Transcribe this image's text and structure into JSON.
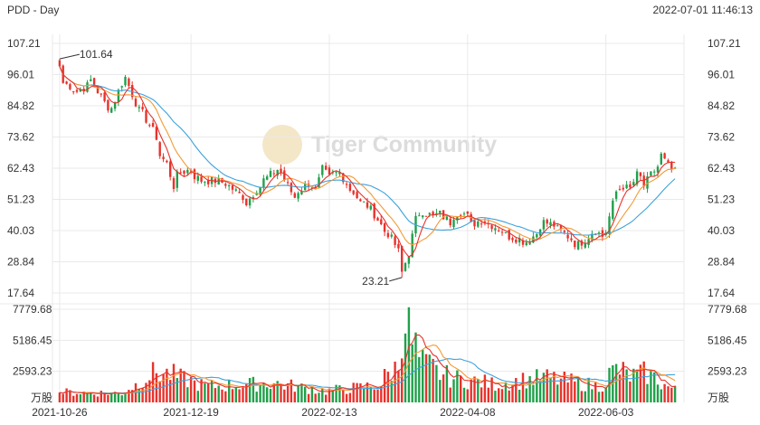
{
  "header": {
    "symbol_period": "PDD - Day",
    "datetime": "2022-07-01 11:46:13"
  },
  "watermark": {
    "text": "Tiger Community"
  },
  "chart_data": [
    {
      "type": "candlestick",
      "title": "",
      "y_axis_left_labels": [
        "107.21",
        "96.01",
        "84.82",
        "73.62",
        "62.43",
        "51.23",
        "40.03",
        "28.84",
        "17.64"
      ],
      "y_axis_right_labels": [
        "107.21",
        "96.01",
        "84.82",
        "73.62",
        "62.43",
        "51.23",
        "40.03",
        "28.84",
        "17.64"
      ],
      "ylim": [
        17.64,
        107.21
      ],
      "annotations": {
        "high": "101.64",
        "low": "23.21"
      },
      "colors": {
        "up": "#20a04a",
        "down": "#e8322c",
        "ma5": "#e8322c",
        "ma10": "#f39a36",
        "ma20": "#3da2dd",
        "grid": "#e9e9e9"
      },
      "x_range": [
        "2021-10-26",
        "2022-07-01"
      ],
      "price_path": [
        [
          "2021-10-26",
          99
        ],
        [
          "2021-10-27",
          93
        ],
        [
          "2021-11-02",
          90
        ],
        [
          "2021-11-08",
          94
        ],
        [
          "2021-11-12",
          86
        ],
        [
          "2021-11-16",
          84
        ],
        [
          "2021-11-19",
          93
        ],
        [
          "2021-11-22",
          95
        ],
        [
          "2021-11-24",
          89
        ],
        [
          "2021-11-26",
          83
        ],
        [
          "2021-11-29",
          82
        ],
        [
          "2021-12-01",
          78
        ],
        [
          "2021-12-06",
          67
        ],
        [
          "2021-12-08",
          64
        ],
        [
          "2021-12-10",
          56
        ],
        [
          "2021-12-14",
          61
        ],
        [
          "2021-12-17",
          62
        ],
        [
          "2021-12-22",
          58
        ],
        [
          "2021-12-28",
          58
        ],
        [
          "2022-01-03",
          56
        ],
        [
          "2022-01-06",
          53
        ],
        [
          "2022-01-10",
          50
        ],
        [
          "2022-01-13",
          55
        ],
        [
          "2022-01-18",
          59
        ],
        [
          "2022-01-21",
          62
        ],
        [
          "2022-01-24",
          61
        ],
        [
          "2022-01-26",
          56
        ],
        [
          "2022-01-28",
          52
        ],
        [
          "2022-02-01",
          55
        ],
        [
          "2022-02-03",
          57
        ],
        [
          "2022-02-07",
          54
        ],
        [
          "2022-02-09",
          62
        ],
        [
          "2022-02-11",
          59
        ],
        [
          "2022-02-16",
          61
        ],
        [
          "2022-02-18",
          57
        ],
        [
          "2022-02-22",
          54
        ],
        [
          "2022-02-24",
          50
        ],
        [
          "2022-02-28",
          49
        ],
        [
          "2022-03-02",
          46
        ],
        [
          "2022-03-04",
          42
        ],
        [
          "2022-03-08",
          39
        ],
        [
          "2022-03-10",
          35
        ],
        [
          "2022-03-14",
          25
        ],
        [
          "2022-03-16",
          32
        ],
        [
          "2022-03-18",
          44
        ],
        [
          "2022-03-22",
          47
        ],
        [
          "2022-03-25",
          45
        ],
        [
          "2022-03-29",
          46
        ],
        [
          "2022-04-01",
          43
        ],
        [
          "2022-04-06",
          47
        ],
        [
          "2022-04-11",
          42
        ],
        [
          "2022-04-14",
          44
        ],
        [
          "2022-04-19",
          42
        ],
        [
          "2022-04-22",
          40
        ],
        [
          "2022-04-26",
          38
        ],
        [
          "2022-04-29",
          37
        ],
        [
          "2022-05-03",
          36
        ],
        [
          "2022-05-06",
          39
        ],
        [
          "2022-05-10",
          43
        ],
        [
          "2022-05-13",
          42
        ],
        [
          "2022-05-17",
          40
        ],
        [
          "2022-05-20",
          37
        ],
        [
          "2022-05-24",
          35
        ],
        [
          "2022-05-27",
          38
        ],
        [
          "2022-05-31",
          40
        ],
        [
          "2022-06-02",
          38
        ],
        [
          "2022-06-06",
          45
        ],
        [
          "2022-06-08",
          54
        ],
        [
          "2022-06-10",
          56
        ],
        [
          "2022-06-14",
          55
        ],
        [
          "2022-06-16",
          60
        ],
        [
          "2022-06-20",
          56
        ],
        [
          "2022-06-22",
          60
        ],
        [
          "2022-06-24",
          63
        ],
        [
          "2022-06-27",
          67
        ],
        [
          "2022-06-29",
          63
        ],
        [
          "2022-07-01",
          61
        ]
      ],
      "moving_averages": [
        "MA5",
        "MA10",
        "MA20"
      ]
    },
    {
      "type": "bar",
      "title": "",
      "y_axis_labels": [
        "7779.68",
        "5186.45",
        "2593.23"
      ],
      "unit": "万股",
      "ylim": [
        0,
        7779.68
      ],
      "x_tick_labels": [
        "2021-10-26",
        "2021-12-19",
        "2022-02-13",
        "2022-04-08",
        "2022-06-03"
      ],
      "volume_path": [
        [
          "2021-10-26",
          900
        ],
        [
          "2021-11-20",
          800
        ],
        [
          "2021-12-03",
          2700
        ],
        [
          "2021-12-10",
          2400
        ],
        [
          "2021-12-24",
          1400
        ],
        [
          "2022-01-20",
          1700
        ],
        [
          "2022-02-10",
          1000
        ],
        [
          "2022-03-04",
          1500
        ],
        [
          "2022-03-11",
          3200
        ],
        [
          "2022-03-15",
          7600
        ],
        [
          "2022-03-17",
          5200
        ],
        [
          "2022-03-22",
          3400
        ],
        [
          "2022-04-01",
          2200
        ],
        [
          "2022-04-20",
          1600
        ],
        [
          "2022-05-10",
          2200
        ],
        [
          "2022-06-01",
          1400
        ],
        [
          "2022-06-08",
          2900
        ],
        [
          "2022-06-14",
          2300
        ],
        [
          "2022-06-20",
          2600
        ],
        [
          "2022-07-01",
          1100
        ]
      ]
    }
  ]
}
